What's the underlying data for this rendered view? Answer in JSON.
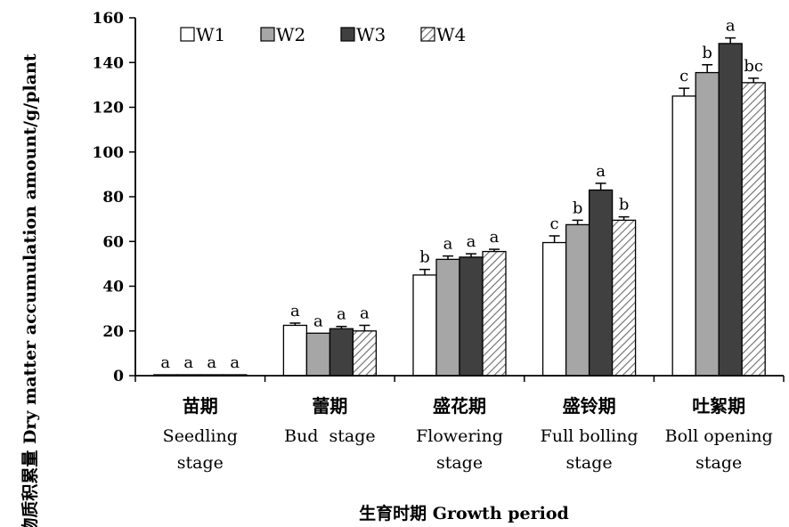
{
  "chart_data": {
    "type": "bar",
    "ylabel": "干物质积累量 Dry matter accumulation amount/g/plant",
    "xlabel": "生育时期 Growth period",
    "ylim": [
      0,
      160
    ],
    "yticks": [
      0,
      20,
      40,
      60,
      80,
      100,
      120,
      140,
      160
    ],
    "categories": [
      {
        "cn": "苗期",
        "en": [
          "Seedling",
          "stage"
        ]
      },
      {
        "cn": "蕾期",
        "en": [
          "Bud  stage"
        ]
      },
      {
        "cn": "盛花期",
        "en": [
          "Flowering",
          "stage"
        ]
      },
      {
        "cn": "盛铃期",
        "en": [
          "Full bolling",
          "stage"
        ]
      },
      {
        "cn": "吐絮期",
        "en": [
          "Boll opening",
          "stage"
        ]
      }
    ],
    "series": [
      {
        "name": "W1",
        "fill": "#ffffff",
        "values": [
          0.3,
          22.5,
          45,
          59.5,
          125
        ],
        "errors": [
          0,
          1,
          2.5,
          3,
          3.5
        ],
        "letters": [
          "a",
          "a",
          "b",
          "c",
          "c"
        ]
      },
      {
        "name": "W2",
        "fill": "#a6a6a6",
        "values": [
          0.3,
          19,
          52,
          67.5,
          135.5
        ],
        "errors": [
          0,
          0,
          1.5,
          2,
          3.5
        ],
        "letters": [
          "a",
          "a",
          "a",
          "b",
          "b"
        ]
      },
      {
        "name": "W3",
        "fill": "#404040",
        "values": [
          0.3,
          21,
          53,
          83,
          148.5
        ],
        "errors": [
          0,
          1,
          1.5,
          3,
          2.5
        ],
        "letters": [
          "a",
          "a",
          "a",
          "a",
          "a"
        ]
      },
      {
        "name": "W4",
        "fill": "hatch",
        "values": [
          0.3,
          20,
          55.5,
          69.5,
          131
        ],
        "errors": [
          0,
          2.5,
          1,
          1.5,
          2
        ],
        "letters": [
          "a",
          "a",
          "a",
          "b",
          "bc"
        ]
      }
    ],
    "legend": "top-left, horizontal",
    "grid": false
  }
}
